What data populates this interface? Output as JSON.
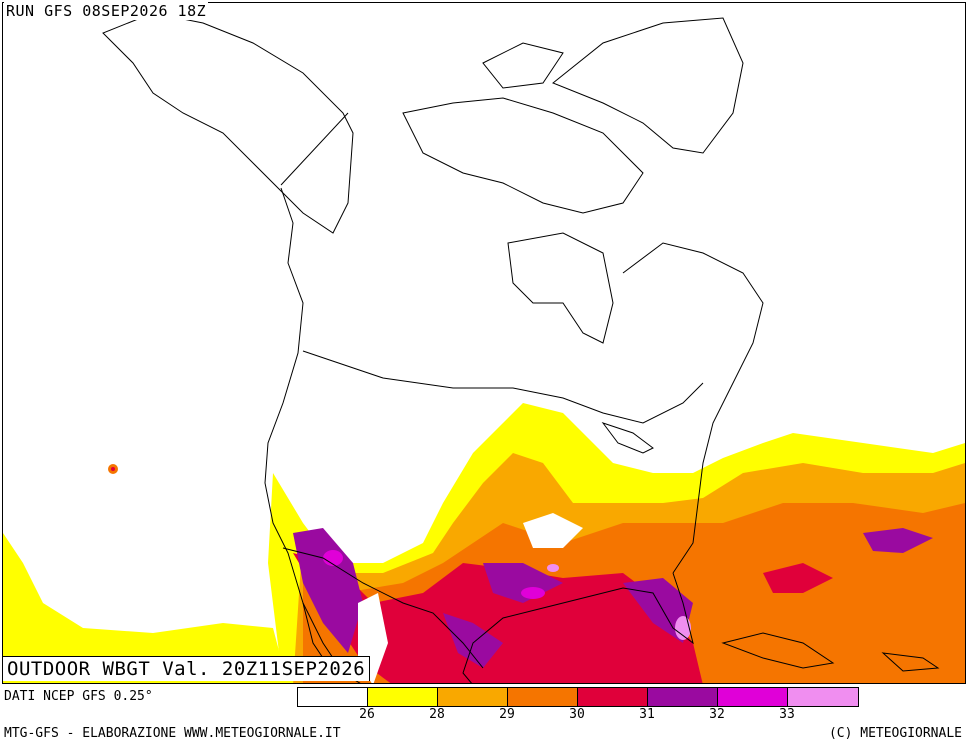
{
  "run_label": "RUN GFS 08SEP2026 18Z",
  "product_label": "OUTDOOR WBGT Val. 20Z11SEP2026",
  "source_label": "DATI NCEP GFS 0.25°",
  "footer_left": "MTG-GFS - ELABORAZIONE WWW.METEOGIORNALE.IT",
  "footer_right": "(C) METEOGIORNALE",
  "legend": {
    "ticks": [
      "26",
      "28",
      "29",
      "30",
      "31",
      "32",
      "33"
    ],
    "colors": [
      "#ffffff",
      "#ffff00",
      "#f9a800",
      "#f57500",
      "#e0003a",
      "#9a0aa0",
      "#e000d8",
      "#f08ef0"
    ]
  }
}
